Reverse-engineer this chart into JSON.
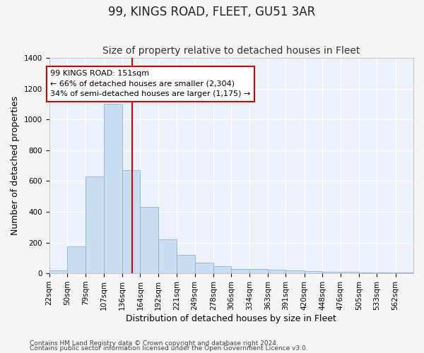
{
  "title": "99, KINGS ROAD, FLEET, GU51 3AR",
  "subtitle": "Size of property relative to detached houses in Fleet",
  "xlabel": "Distribution of detached houses by size in Fleet",
  "ylabel": "Number of detached properties",
  "footnote1": "Contains HM Land Registry data © Crown copyright and database right 2024.",
  "footnote2": "Contains public sector information licensed under the Open Government Licence v3.0.",
  "annotation_title": "99 KINGS ROAD: 151sqm",
  "annotation_line1": "← 66% of detached houses are smaller (2,304)",
  "annotation_line2": "34% of semi-detached houses are larger (1,175) →",
  "property_size": 151,
  "bar_color": "#c9dcf0",
  "bar_edge_color": "#8ab4d9",
  "vline_color": "#cc0000",
  "background_color": "#edf2fa",
  "grid_color": "#ffffff",
  "bins": [
    22,
    50,
    79,
    107,
    136,
    164,
    192,
    221,
    249,
    278,
    306,
    334,
    363,
    391,
    420,
    448,
    476,
    505,
    533,
    562,
    590
  ],
  "counts": [
    18,
    175,
    630,
    1100,
    670,
    430,
    220,
    120,
    70,
    45,
    30,
    28,
    22,
    20,
    15,
    10,
    8,
    5,
    3,
    3
  ],
  "ylim": [
    0,
    1400
  ],
  "yticks": [
    0,
    200,
    400,
    600,
    800,
    1000,
    1200,
    1400
  ],
  "annotation_box_color": "#ffffff",
  "annotation_box_edge": "#cc0000",
  "title_fontsize": 12,
  "subtitle_fontsize": 10,
  "axis_label_fontsize": 9,
  "tick_fontsize": 7.5,
  "annotation_fontsize": 8,
  "footnote_fontsize": 6.5,
  "fig_bg": "#f5f5f5"
}
